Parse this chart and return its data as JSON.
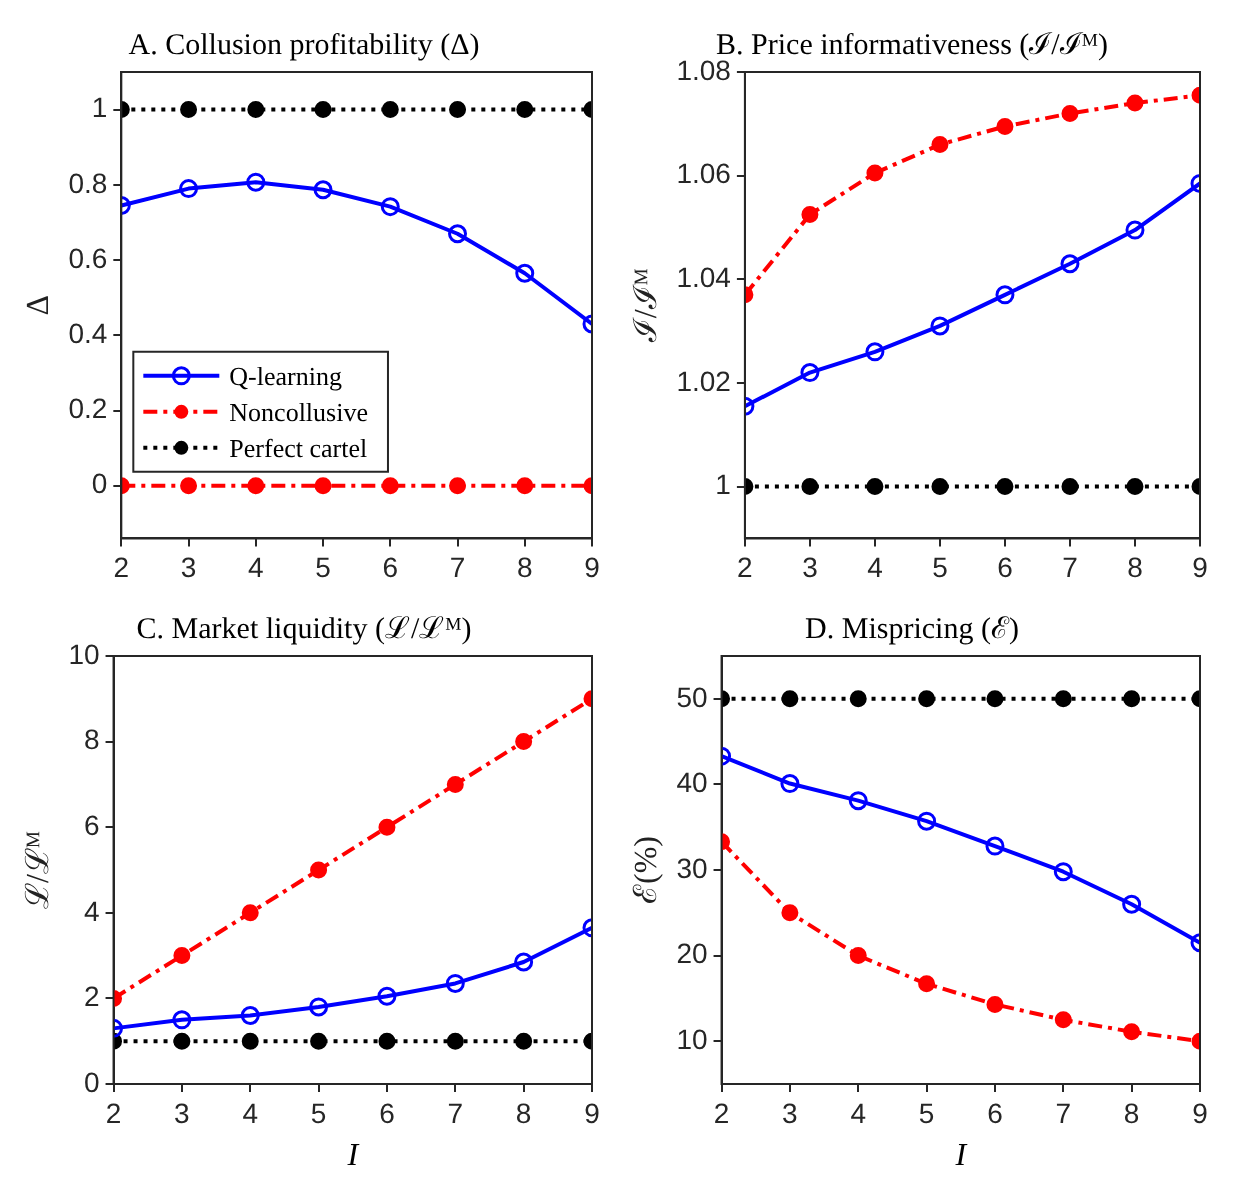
{
  "chart_data": [
    {
      "type": "line",
      "title": "A. Collusion profitability (Δ)",
      "ylabel": "Δ",
      "x": [
        2,
        3,
        4,
        5,
        6,
        7,
        8,
        9
      ],
      "xlim": [
        2,
        9
      ],
      "xticks": [
        2,
        3,
        4,
        5,
        6,
        7,
        8,
        9
      ],
      "ylim": [
        -0.14,
        1.1
      ],
      "yticks": [
        0,
        0.2,
        0.4,
        0.6,
        0.8,
        1
      ],
      "grid": false,
      "legend": "bottom left",
      "marker": "circle",
      "series": [
        {
          "name": "Q-learning",
          "color": "#0000ff",
          "line_style": "solid",
          "values": [
            0.745,
            0.79,
            0.807,
            0.787,
            0.742,
            0.67,
            0.565,
            0.43
          ]
        },
        {
          "name": "Noncollusive",
          "color": "#ff0000",
          "line_style": "dashed",
          "values": [
            0,
            0,
            0,
            0,
            0,
            0,
            0,
            0
          ]
        },
        {
          "name": "Perfect cartel",
          "color": "#000000",
          "line_style": "dotted",
          "values": [
            1,
            1,
            1,
            1,
            1,
            1,
            1,
            1
          ]
        }
      ]
    },
    {
      "type": "line",
      "title": "B. Price informativeness (ℐ/ℐᴹ)",
      "ylabel": "ℐ/ℐᴹ",
      "x": [
        2,
        3,
        4,
        5,
        6,
        7,
        8,
        9
      ],
      "xlim": [
        2,
        9
      ],
      "xticks": [
        2,
        3,
        4,
        5,
        6,
        7,
        8,
        9
      ],
      "ylim": [
        0.99,
        1.08
      ],
      "yticks": [
        1,
        1.02,
        1.04,
        1.06,
        1.08
      ],
      "grid": false,
      "marker": "circle",
      "series": [
        {
          "color": "#0000ff",
          "line_style": "solid",
          "values": [
            1.0155,
            1.022,
            1.026,
            1.031,
            1.037,
            1.043,
            1.0495,
            1.0585
          ]
        },
        {
          "color": "#ff0000",
          "line_style": "dashed",
          "values": [
            1.037,
            1.0525,
            1.0605,
            1.066,
            1.0695,
            1.072,
            1.074,
            1.0755
          ]
        },
        {
          "color": "#000000",
          "line_style": "dotted",
          "values": [
            1,
            1,
            1,
            1,
            1,
            1,
            1,
            1
          ]
        }
      ]
    },
    {
      "type": "line",
      "title": "C. Market liquidity (ℒ/ℒᴹ)",
      "ylabel": "ℒ/ℒᴹ",
      "xlabel": "I",
      "x": [
        2,
        3,
        4,
        5,
        6,
        7,
        8,
        9
      ],
      "xlim": [
        2,
        9
      ],
      "xticks": [
        2,
        3,
        4,
        5,
        6,
        7,
        8,
        9
      ],
      "ylim": [
        0,
        10
      ],
      "yticks": [
        0,
        2,
        4,
        6,
        8,
        10
      ],
      "grid": false,
      "marker": "circle",
      "series": [
        {
          "color": "#0000ff",
          "line_style": "solid",
          "values": [
            1.3,
            1.5,
            1.6,
            1.8,
            2.05,
            2.35,
            2.85,
            3.65
          ]
        },
        {
          "color": "#ff0000",
          "line_style": "dashed",
          "values": [
            2,
            3,
            4,
            5,
            6,
            7,
            8,
            9
          ]
        },
        {
          "color": "#000000",
          "line_style": "dotted",
          "values": [
            1,
            1,
            1,
            1,
            1,
            1,
            1,
            1
          ]
        }
      ]
    },
    {
      "type": "line",
      "title": "D. Mispricing (ℰ)",
      "ylabel": "ℰ(%)",
      "xlabel": "I",
      "x": [
        2,
        3,
        4,
        5,
        6,
        7,
        8,
        9
      ],
      "xlim": [
        2,
        9
      ],
      "xticks": [
        2,
        3,
        4,
        5,
        6,
        7,
        8,
        9
      ],
      "ylim": [
        5,
        55
      ],
      "yticks": [
        10,
        20,
        30,
        40,
        50
      ],
      "grid": false,
      "marker": "circle",
      "series": [
        {
          "color": "#0000ff",
          "line_style": "solid",
          "values": [
            43.3,
            40.1,
            38.1,
            35.7,
            32.8,
            29.8,
            26,
            21.5
          ]
        },
        {
          "color": "#ff0000",
          "line_style": "dashed",
          "values": [
            33.3,
            25,
            20,
            16.7,
            14.3,
            12.5,
            11.1,
            10
          ]
        },
        {
          "color": "#000000",
          "line_style": "dotted",
          "values": [
            50,
            50,
            50,
            50,
            50,
            50,
            50,
            50
          ]
        }
      ]
    }
  ]
}
